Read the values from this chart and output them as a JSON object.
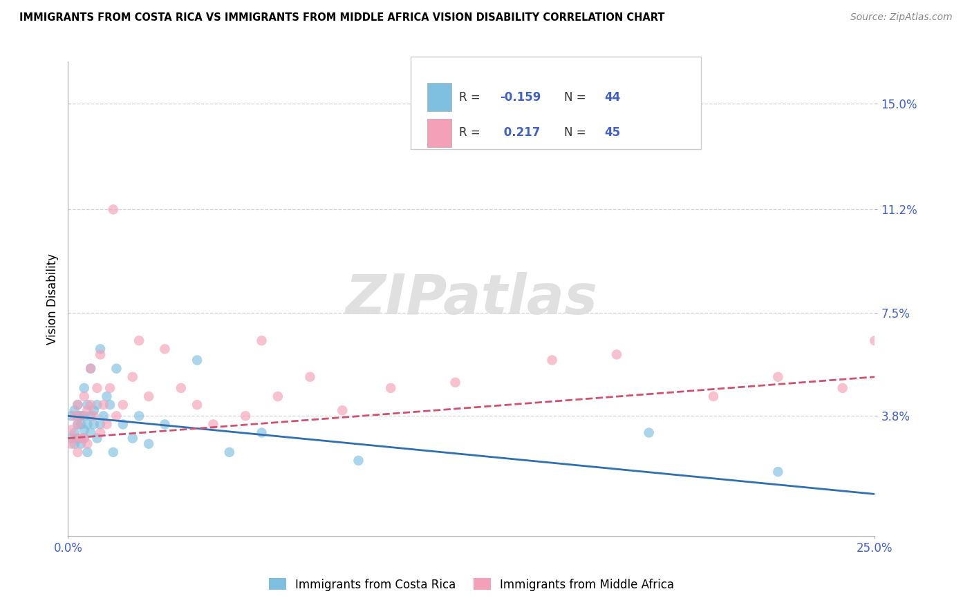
{
  "title": "IMMIGRANTS FROM COSTA RICA VS IMMIGRANTS FROM MIDDLE AFRICA VISION DISABILITY CORRELATION CHART",
  "source": "Source: ZipAtlas.com",
  "ylabel": "Vision Disability",
  "xmin": 0.0,
  "xmax": 0.25,
  "ymin": -0.005,
  "ymax": 0.165,
  "xticks": [
    0.0,
    0.25
  ],
  "xtick_labels": [
    "0.0%",
    "25.0%"
  ],
  "yticks": [
    0.038,
    0.075,
    0.112,
    0.15
  ],
  "ytick_labels": [
    "3.8%",
    "7.5%",
    "11.2%",
    "15.0%"
  ],
  "watermark": "ZIPatlas",
  "color_blue": "#7fbfdf",
  "color_pink": "#f4a0b8",
  "color_blue_line": "#3070b0",
  "color_pink_line": "#d05070",
  "grid_color": "#c8c8c8",
  "background_color": "#ffffff",
  "tick_color": "#4060c8",
  "costa_rica_x": [
    0.001,
    0.001,
    0.002,
    0.002,
    0.002,
    0.003,
    0.003,
    0.003,
    0.003,
    0.004,
    0.004,
    0.004,
    0.005,
    0.005,
    0.005,
    0.005,
    0.006,
    0.006,
    0.006,
    0.007,
    0.007,
    0.007,
    0.008,
    0.008,
    0.009,
    0.009,
    0.01,
    0.01,
    0.011,
    0.012,
    0.013,
    0.014,
    0.015,
    0.017,
    0.02,
    0.022,
    0.025,
    0.03,
    0.04,
    0.05,
    0.06,
    0.09,
    0.18,
    0.22
  ],
  "costa_rica_y": [
    0.03,
    0.038,
    0.032,
    0.04,
    0.028,
    0.035,
    0.042,
    0.03,
    0.038,
    0.038,
    0.035,
    0.028,
    0.048,
    0.03,
    0.038,
    0.033,
    0.035,
    0.042,
    0.025,
    0.055,
    0.032,
    0.038,
    0.04,
    0.035,
    0.03,
    0.042,
    0.062,
    0.035,
    0.038,
    0.045,
    0.042,
    0.025,
    0.055,
    0.035,
    0.03,
    0.038,
    0.028,
    0.035,
    0.058,
    0.025,
    0.032,
    0.022,
    0.032,
    0.018
  ],
  "middle_africa_x": [
    0.001,
    0.001,
    0.002,
    0.002,
    0.003,
    0.003,
    0.003,
    0.004,
    0.004,
    0.005,
    0.005,
    0.006,
    0.006,
    0.007,
    0.007,
    0.008,
    0.009,
    0.01,
    0.01,
    0.011,
    0.012,
    0.013,
    0.014,
    0.015,
    0.017,
    0.02,
    0.022,
    0.025,
    0.03,
    0.035,
    0.04,
    0.045,
    0.055,
    0.06,
    0.065,
    0.075,
    0.085,
    0.1,
    0.12,
    0.15,
    0.17,
    0.2,
    0.22,
    0.24,
    0.25
  ],
  "middle_africa_y": [
    0.033,
    0.028,
    0.038,
    0.03,
    0.042,
    0.025,
    0.035,
    0.03,
    0.038,
    0.045,
    0.03,
    0.04,
    0.028,
    0.042,
    0.055,
    0.038,
    0.048,
    0.032,
    0.06,
    0.042,
    0.035,
    0.048,
    0.112,
    0.038,
    0.042,
    0.052,
    0.065,
    0.045,
    0.062,
    0.048,
    0.042,
    0.035,
    0.038,
    0.065,
    0.045,
    0.052,
    0.04,
    0.048,
    0.05,
    0.058,
    0.06,
    0.045,
    0.052,
    0.048,
    0.065
  ],
  "cr_trend_x0": 0.0,
  "cr_trend_x1": 0.25,
  "cr_trend_y0": 0.038,
  "cr_trend_y1": 0.01,
  "ma_trend_x0": 0.0,
  "ma_trend_x1": 0.25,
  "ma_trend_y0": 0.03,
  "ma_trend_y1": 0.052
}
